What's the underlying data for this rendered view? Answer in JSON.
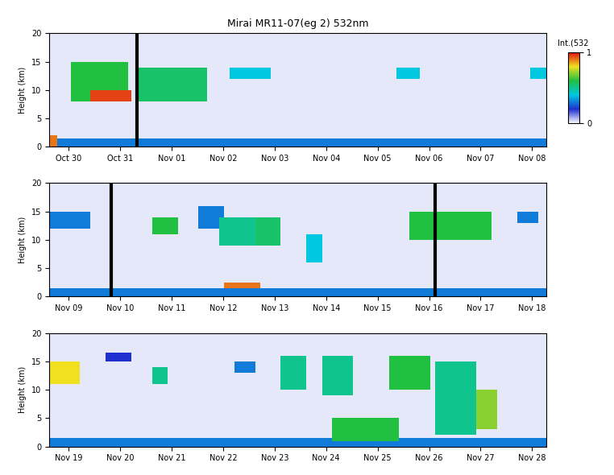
{
  "chart_data": [
    {
      "type": "heatmap",
      "title": "Mirai MR11-07(eg 2) 532nm",
      "y_label": "Height (km)",
      "xlim": [
        0,
        9.66
      ],
      "xticks": [
        {
          "value": 0.38,
          "label": "Oct 30"
        },
        {
          "value": 1.38,
          "label": "Oct 31"
        },
        {
          "value": 2.38,
          "label": "Nov 01"
        },
        {
          "value": 3.38,
          "label": "Nov 02"
        },
        {
          "value": 4.38,
          "label": "Nov 03"
        },
        {
          "value": 5.38,
          "label": "Nov 04"
        },
        {
          "value": 6.38,
          "label": "Nov 05"
        },
        {
          "value": 7.38,
          "label": "Nov 06"
        },
        {
          "value": 8.38,
          "label": "Nov 07"
        },
        {
          "value": 9.38,
          "label": "Nov 08"
        }
      ],
      "ylim": [
        0,
        20
      ],
      "yticks": [
        0,
        5,
        10,
        15,
        20
      ],
      "clouds": [
        [
          0,
          9.66,
          0,
          1.5,
          0.3
        ],
        [
          0,
          0.15,
          0,
          2,
          0.9
        ],
        [
          0.43,
          1.53,
          8,
          15,
          0.6
        ],
        [
          0.8,
          1.6,
          8,
          10,
          0.95
        ],
        [
          1.69,
          3.07,
          8,
          14,
          0.55
        ],
        [
          3.5,
          4.3,
          12,
          14,
          0.4
        ],
        [
          6.75,
          7.2,
          12,
          14,
          0.4
        ],
        [
          9.35,
          9.66,
          12,
          14,
          0.4
        ]
      ],
      "markers": [
        1.7
      ],
      "colorbar": {
        "label": "Int.(532",
        "range": [
          0,
          1
        ],
        "ticks": [
          0,
          1
        ]
      }
    },
    {
      "type": "heatmap",
      "y_label": "Height (km)",
      "xlim": [
        0,
        9.66
      ],
      "xticks": [
        {
          "value": 0.38,
          "label": "Nov 09"
        },
        {
          "value": 1.38,
          "label": "Nov 10"
        },
        {
          "value": 2.38,
          "label": "Nov 11"
        },
        {
          "value": 3.38,
          "label": "Nov 12"
        },
        {
          "value": 4.38,
          "label": "Nov 13"
        },
        {
          "value": 5.38,
          "label": "Nov 14"
        },
        {
          "value": 6.38,
          "label": "Nov 15"
        },
        {
          "value": 7.38,
          "label": "Nov 16"
        },
        {
          "value": 8.38,
          "label": "Nov 17"
        },
        {
          "value": 9.38,
          "label": "Nov 18"
        }
      ],
      "ylim": [
        0,
        20
      ],
      "yticks": [
        0,
        5,
        10,
        15,
        20
      ],
      "clouds": [
        [
          0,
          9.66,
          0,
          1.5,
          0.3
        ],
        [
          0,
          0.8,
          12,
          15,
          0.3
        ],
        [
          2.0,
          2.5,
          11,
          14,
          0.6
        ],
        [
          2.9,
          3.4,
          12,
          16,
          0.3
        ],
        [
          3.3,
          4.0,
          9,
          14,
          0.5
        ],
        [
          4.0,
          4.5,
          9,
          14,
          0.55
        ],
        [
          3.4,
          4.1,
          1.5,
          2.5,
          0.9
        ],
        [
          5.0,
          5.3,
          6,
          11,
          0.4
        ],
        [
          7.0,
          8.6,
          10,
          15,
          0.6
        ],
        [
          9.1,
          9.5,
          13,
          15,
          0.3
        ]
      ],
      "markers": [
        1.2,
        7.5
      ]
    },
    {
      "type": "heatmap",
      "y_label": "Height (km)",
      "xlim": [
        0,
        9.66
      ],
      "xticks": [
        {
          "value": 0.38,
          "label": "Nov 19"
        },
        {
          "value": 1.38,
          "label": "Nov 20"
        },
        {
          "value": 2.38,
          "label": "Nov 21"
        },
        {
          "value": 3.38,
          "label": "Nov 22"
        },
        {
          "value": 4.38,
          "label": "Nov 23"
        },
        {
          "value": 5.38,
          "label": "Nov 24"
        },
        {
          "value": 6.38,
          "label": "Nov 25"
        },
        {
          "value": 7.38,
          "label": "Nov 26"
        },
        {
          "value": 8.38,
          "label": "Nov 27"
        },
        {
          "value": 9.38,
          "label": "Nov 28"
        }
      ],
      "ylim": [
        0,
        20
      ],
      "yticks": [
        0,
        5,
        10,
        15,
        20
      ],
      "clouds": [
        [
          0,
          9.66,
          0,
          1.5,
          0.3
        ],
        [
          0,
          0.6,
          11,
          15,
          0.8
        ],
        [
          1.1,
          1.6,
          15,
          16.5,
          0.2
        ],
        [
          2.0,
          2.3,
          11,
          14,
          0.5
        ],
        [
          3.6,
          4.0,
          13,
          15,
          0.3
        ],
        [
          4.5,
          5.0,
          10,
          16,
          0.5
        ],
        [
          5.3,
          5.9,
          9,
          16,
          0.5
        ],
        [
          5.5,
          6.8,
          1,
          5,
          0.6
        ],
        [
          6.6,
          7.4,
          10,
          16,
          0.6
        ],
        [
          7.5,
          8.3,
          2,
          15,
          0.5
        ],
        [
          8.3,
          8.7,
          3,
          10,
          0.7
        ]
      ],
      "markers": []
    }
  ]
}
